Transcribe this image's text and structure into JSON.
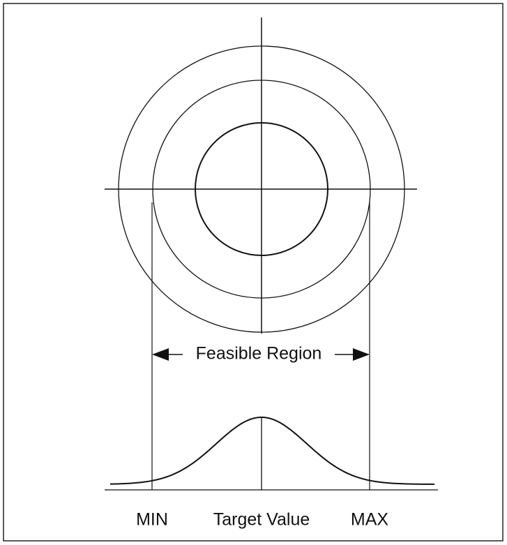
{
  "region_label": "Feasible Region",
  "labels": {
    "min": "MIN",
    "target": "Target Value",
    "max": "MAX"
  }
}
